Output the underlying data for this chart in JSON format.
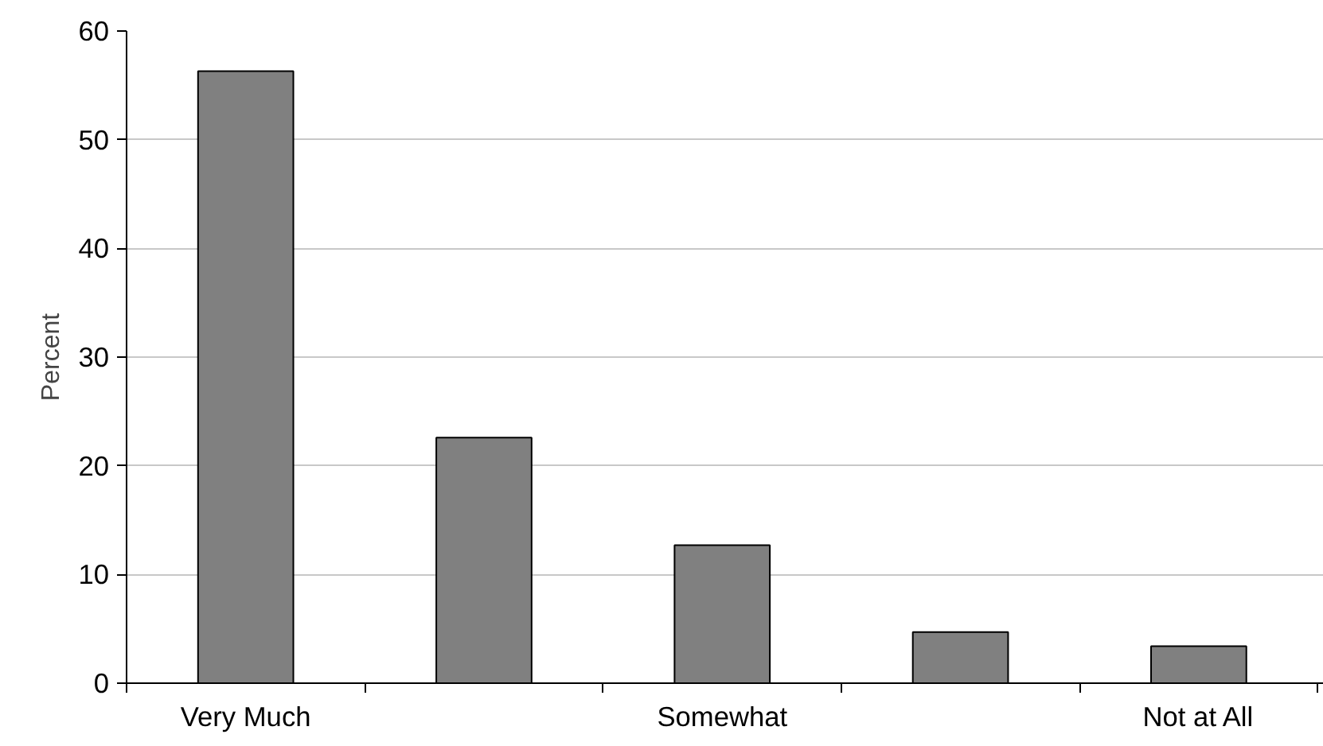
{
  "chart_data": {
    "type": "bar",
    "ylabel": "Percent",
    "categories": [
      "Very Much",
      null,
      "Somewhat",
      null,
      "Not at All"
    ],
    "values": [
      56.3,
      22.6,
      12.7,
      4.7,
      3.4
    ],
    "color": "#808080",
    "ylim": [
      0,
      60
    ],
    "yticks": [
      0,
      10,
      20,
      30,
      40,
      50,
      60
    ],
    "grid": "y"
  }
}
